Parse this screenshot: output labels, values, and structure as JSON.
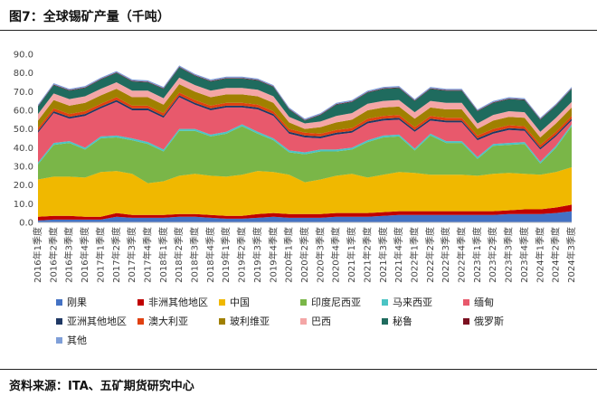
{
  "title": "图7：全球锡矿产量（千吨）",
  "source": "资料来源：ITA、五矿期货研究中心",
  "chart_data": {
    "type": "area",
    "stacked": true,
    "ylim": [
      0,
      90
    ],
    "yticks": [
      "0.0",
      "10.0",
      "20.0",
      "30.0",
      "40.0",
      "50.0",
      "60.0",
      "70.0",
      "80.0",
      "90.0"
    ],
    "grid": false,
    "legend_position": "bottom",
    "categories": [
      "2016年1季度",
      "2016年2季度",
      "2016年3季度",
      "2016年4季度",
      "2017年1季度",
      "2017年2季度",
      "2017年3季度",
      "2017年4季度",
      "2018年1季度",
      "2018年2季度",
      "2018年3季度",
      "2018年4季度",
      "2019年1季度",
      "2019年2季度",
      "2019年3季度",
      "2019年4季度",
      "2020年1季度",
      "2020年2季度",
      "2020年3季度",
      "2020年4季度",
      "2021年1季度",
      "2021年2季度",
      "2021年3季度",
      "2021年4季度",
      "2022年1季度",
      "2022年2季度",
      "2022年3季度",
      "2022年4季度",
      "2023年1季度",
      "2023年2季度",
      "2023年3季度",
      "2023年4季度",
      "2024年1季度",
      "2024年2季度",
      "2024年3季度"
    ],
    "series": [
      {
        "name": "刚果",
        "color": "#4472c4",
        "values": [
          1.0,
          1.5,
          1.5,
          1.5,
          1.5,
          3.0,
          2.5,
          2.5,
          2.5,
          3.0,
          3.0,
          2.5,
          2.0,
          2.0,
          2.5,
          3.0,
          2.5,
          2.5,
          2.5,
          3.0,
          3.0,
          3.0,
          3.5,
          4.0,
          4.0,
          4.0,
          4.0,
          4.0,
          4.0,
          4.0,
          4.5,
          4.5,
          4.5,
          5.0,
          6.0
        ]
      },
      {
        "name": "非洲其他地区",
        "color": "#c00000",
        "values": [
          2.0,
          2.0,
          2.0,
          1.5,
          1.5,
          2.0,
          1.5,
          1.5,
          1.5,
          1.5,
          1.5,
          1.5,
          1.5,
          1.5,
          2.0,
          2.0,
          2.0,
          2.0,
          2.0,
          2.0,
          2.0,
          2.0,
          2.0,
          2.0,
          2.0,
          2.0,
          2.0,
          2.0,
          2.0,
          2.0,
          2.0,
          2.5,
          2.5,
          3.0,
          3.5
        ]
      },
      {
        "name": "中国",
        "color": "#f0b800",
        "values": [
          20.0,
          21.0,
          21.0,
          21.0,
          24.0,
          22.5,
          22.0,
          17.0,
          18.0,
          20.5,
          21.5,
          21.0,
          21.0,
          22.0,
          23.0,
          22.0,
          21.0,
          17.0,
          18.5,
          20.0,
          21.0,
          19.0,
          20.0,
          21.0,
          20.5,
          19.5,
          19.5,
          19.5,
          19.0,
          20.0,
          20.0,
          19.0,
          18.5,
          19.0,
          20.0
        ]
      },
      {
        "name": "印度尼西亚",
        "color": "#7ab648",
        "values": [
          8.0,
          17.0,
          18.0,
          15.0,
          18.0,
          18.0,
          18.0,
          21.0,
          16.0,
          24.0,
          23.0,
          21.0,
          23.0,
          26.0,
          20.0,
          17.0,
          12.0,
          15.0,
          15.0,
          13.0,
          13.0,
          19.0,
          20.0,
          19.0,
          12.0,
          21.0,
          17.0,
          17.0,
          9.0,
          15.0,
          15.0,
          16.0,
          6.0,
          13.0,
          22.0
        ]
      },
      {
        "name": "马来西亚",
        "color": "#4bc4c4",
        "values": [
          1.0,
          1.0,
          1.0,
          1.0,
          1.0,
          1.0,
          1.0,
          1.0,
          1.0,
          1.0,
          1.0,
          1.0,
          1.0,
          1.0,
          1.0,
          1.0,
          1.0,
          1.0,
          1.0,
          1.0,
          1.0,
          1.0,
          1.0,
          1.0,
          1.0,
          1.0,
          1.0,
          1.0,
          1.0,
          1.0,
          1.0,
          1.0,
          1.0,
          1.0,
          1.0
        ]
      },
      {
        "name": "缅甸",
        "color": "#e8596c",
        "values": [
          16.0,
          16.0,
          12.0,
          17.0,
          15.0,
          18.0,
          15.0,
          17.0,
          17.0,
          17.0,
          13.0,
          13.0,
          13.0,
          9.0,
          12.0,
          12.0,
          9.0,
          8.0,
          6.0,
          8.0,
          8.0,
          9.0,
          8.0,
          8.0,
          9.0,
          7.0,
          10.0,
          10.0,
          9.0,
          5.5,
          7.0,
          6.0,
          6.5,
          5.0,
          2.0
        ]
      },
      {
        "name": "亚洲其他地区",
        "color": "#1f3864",
        "values": [
          1.0,
          1.0,
          1.0,
          1.0,
          1.0,
          1.0,
          1.0,
          1.0,
          1.0,
          1.0,
          1.0,
          1.0,
          1.0,
          1.0,
          1.0,
          1.0,
          1.0,
          1.0,
          1.0,
          1.0,
          1.0,
          1.0,
          1.0,
          1.0,
          1.0,
          1.0,
          1.0,
          1.0,
          1.0,
          1.0,
          1.0,
          1.0,
          1.0,
          1.0,
          1.0
        ]
      },
      {
        "name": "澳大利亚",
        "color": "#e04010",
        "values": [
          1.5,
          1.5,
          1.5,
          1.5,
          1.5,
          1.5,
          1.5,
          1.5,
          1.5,
          1.5,
          1.5,
          1.5,
          1.5,
          1.5,
          1.5,
          1.5,
          1.5,
          1.5,
          1.5,
          1.5,
          1.5,
          1.5,
          1.5,
          1.5,
          1.5,
          1.5,
          1.5,
          1.5,
          1.5,
          1.5,
          1.5,
          1.5,
          1.5,
          1.5,
          1.5
        ]
      },
      {
        "name": "玻利维亚",
        "color": "#a08000",
        "values": [
          4.0,
          4.5,
          4.5,
          4.5,
          4.5,
          4.5,
          4.5,
          4.5,
          4.5,
          4.5,
          4.5,
          4.5,
          4.5,
          4.5,
          4.5,
          4.5,
          3.5,
          2.0,
          3.5,
          4.0,
          4.5,
          4.5,
          4.5,
          4.5,
          4.5,
          4.5,
          4.5,
          4.5,
          3.5,
          4.5,
          4.5,
          4.5,
          4.0,
          4.5,
          4.5
        ]
      },
      {
        "name": "巴西",
        "color": "#f4a6a6",
        "values": [
          3.5,
          3.5,
          3.5,
          3.5,
          3.5,
          3.5,
          3.5,
          3.5,
          3.5,
          3.5,
          3.5,
          3.5,
          3.5,
          3.5,
          3.5,
          3.5,
          3.0,
          3.0,
          3.0,
          3.5,
          3.5,
          3.5,
          3.5,
          3.5,
          3.5,
          3.5,
          3.5,
          3.5,
          3.0,
          3.0,
          3.0,
          3.0,
          3.0,
          3.0,
          3.0
        ]
      },
      {
        "name": "秘鲁",
        "color": "#1f6b5e",
        "values": [
          4.0,
          4.5,
          4.5,
          4.5,
          5.0,
          5.0,
          5.0,
          4.5,
          5.0,
          5.5,
          5.0,
          5.0,
          5.0,
          5.0,
          5.0,
          5.0,
          4.0,
          1.5,
          3.5,
          6.0,
          6.0,
          6.0,
          6.5,
          6.5,
          6.0,
          6.5,
          6.5,
          6.5,
          6.5,
          6.5,
          6.5,
          6.5,
          6.5,
          6.5,
          7.0
        ]
      },
      {
        "name": "俄罗斯",
        "color": "#7b1020",
        "values": [
          0.3,
          0.3,
          0.3,
          0.3,
          0.3,
          0.3,
          0.3,
          0.3,
          0.3,
          0.3,
          0.3,
          0.3,
          0.3,
          0.3,
          0.3,
          0.3,
          0.3,
          0.3,
          0.3,
          0.3,
          0.3,
          0.3,
          0.3,
          0.3,
          0.3,
          0.3,
          0.3,
          0.3,
          0.3,
          0.3,
          0.3,
          0.3,
          0.3,
          0.3,
          0.3
        ]
      },
      {
        "name": "其他",
        "color": "#7f9fd8",
        "values": [
          0.7,
          0.7,
          0.7,
          0.7,
          0.7,
          0.7,
          0.7,
          0.7,
          0.7,
          0.7,
          0.7,
          0.7,
          0.7,
          0.7,
          0.7,
          0.7,
          0.7,
          0.7,
          0.7,
          0.7,
          0.7,
          0.7,
          0.7,
          0.7,
          0.7,
          0.7,
          0.7,
          0.7,
          0.7,
          0.7,
          0.7,
          0.7,
          0.7,
          0.7,
          0.7
        ]
      }
    ]
  }
}
